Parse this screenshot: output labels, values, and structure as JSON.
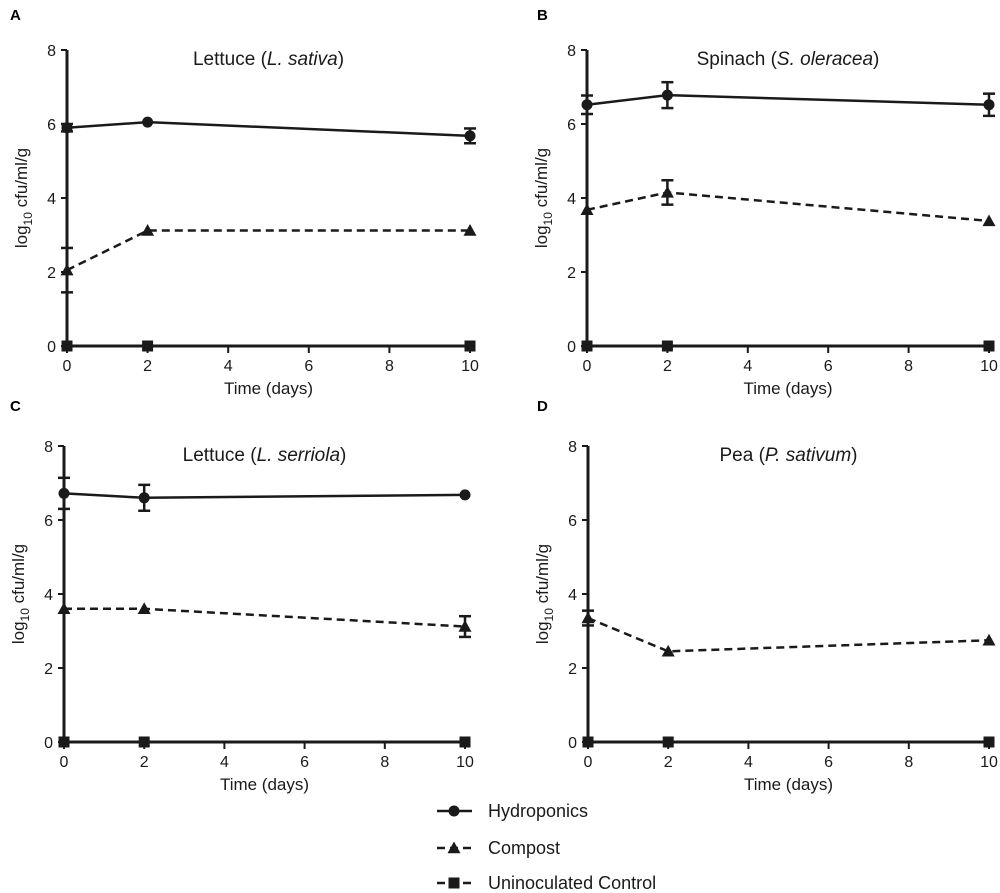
{
  "legend": [
    {
      "series": "hydroponics",
      "label": "Hydroponics",
      "marker": "circle",
      "dash": "solid"
    },
    {
      "series": "compost",
      "label": "Compost",
      "marker": "triangle",
      "dash": "dashed"
    },
    {
      "series": "control",
      "label": "Uninoculated Control",
      "marker": "square",
      "dash": "dashed"
    }
  ],
  "chart_data": [
    {
      "panel": "A",
      "type": "line",
      "title": "Lettuce",
      "title_species": "L. sativa",
      "xlabel": "Time (days)",
      "ylabel_main": "log",
      "ylabel_sub": "10",
      "ylabel_rest": " cfu/ml/g",
      "x": [
        0,
        2,
        10
      ],
      "xlim": [
        0,
        10
      ],
      "xticks": [
        0,
        2,
        4,
        6,
        8,
        10
      ],
      "ylim": [
        0,
        8
      ],
      "yticks": [
        0,
        2,
        4,
        6,
        8
      ],
      "series": [
        {
          "name": "Hydroponics",
          "key": "hydroponics",
          "values": [
            5.9,
            6.05,
            5.68
          ],
          "err": [
            0.1,
            0.05,
            0.2
          ]
        },
        {
          "name": "Compost",
          "key": "compost",
          "values": [
            2.05,
            3.12,
            3.12
          ],
          "err": [
            0.6,
            0.05,
            0.05
          ]
        },
        {
          "name": "Uninoculated Control",
          "key": "control",
          "values": [
            0,
            0,
            0
          ],
          "err": [
            0,
            0,
            0
          ]
        }
      ]
    },
    {
      "panel": "B",
      "type": "line",
      "title": "Spinach",
      "title_species": "S. oleracea",
      "xlabel": "Time (days)",
      "ylabel_main": "log",
      "ylabel_sub": "10",
      "ylabel_rest": " cfu/ml/g",
      "x": [
        0,
        2,
        10
      ],
      "xlim": [
        0,
        10
      ],
      "xticks": [
        0,
        2,
        4,
        6,
        8,
        10
      ],
      "ylim": [
        0,
        8
      ],
      "yticks": [
        0,
        2,
        4,
        6,
        8
      ],
      "series": [
        {
          "name": "Hydroponics",
          "key": "hydroponics",
          "values": [
            6.52,
            6.78,
            6.52
          ],
          "err": [
            0.25,
            0.35,
            0.3
          ]
        },
        {
          "name": "Compost",
          "key": "compost",
          "values": [
            3.68,
            4.15,
            3.38
          ],
          "err": [
            0.05,
            0.33,
            0.05
          ]
        },
        {
          "name": "Uninoculated Control",
          "key": "control",
          "values": [
            0,
            0,
            0
          ],
          "err": [
            0,
            0,
            0
          ]
        }
      ]
    },
    {
      "panel": "C",
      "type": "line",
      "title": "Lettuce",
      "title_species": "L. serriola",
      "xlabel": "Time (days)",
      "ylabel_main": "log",
      "ylabel_sub": "10",
      "ylabel_rest": " cfu/ml/g",
      "x": [
        0,
        2,
        10
      ],
      "xlim": [
        0,
        10
      ],
      "xticks": [
        0,
        2,
        4,
        6,
        8,
        10
      ],
      "ylim": [
        0,
        8
      ],
      "yticks": [
        0,
        2,
        4,
        6,
        8
      ],
      "series": [
        {
          "name": "Hydroponics",
          "key": "hydroponics",
          "values": [
            6.72,
            6.6,
            6.68
          ],
          "err": [
            0.42,
            0.35,
            0.05
          ]
        },
        {
          "name": "Compost",
          "key": "compost",
          "values": [
            3.6,
            3.6,
            3.12
          ],
          "err": [
            0.05,
            0.05,
            0.28
          ]
        },
        {
          "name": "Uninoculated Control",
          "key": "control",
          "values": [
            0,
            0,
            0
          ],
          "err": [
            0,
            0,
            0
          ]
        }
      ]
    },
    {
      "panel": "D",
      "type": "line",
      "title": "Pea",
      "title_species": "P. sativum",
      "xlabel": "Time (days)",
      "ylabel_main": "log",
      "ylabel_sub": "10",
      "ylabel_rest": " cfu/ml/g",
      "x": [
        0,
        2,
        10
      ],
      "xlim": [
        0,
        10
      ],
      "xticks": [
        0,
        2,
        4,
        6,
        8,
        10
      ],
      "ylim": [
        0,
        8
      ],
      "yticks": [
        0,
        2,
        4,
        6,
        8
      ],
      "series": [
        {
          "name": "Compost",
          "key": "compost",
          "values": [
            3.35,
            2.45,
            2.75
          ],
          "err": [
            0.2,
            0.05,
            0.05
          ]
        },
        {
          "name": "Uninoculated Control",
          "key": "control",
          "values": [
            0,
            0,
            0
          ],
          "err": [
            0,
            0,
            0
          ]
        }
      ]
    }
  ]
}
